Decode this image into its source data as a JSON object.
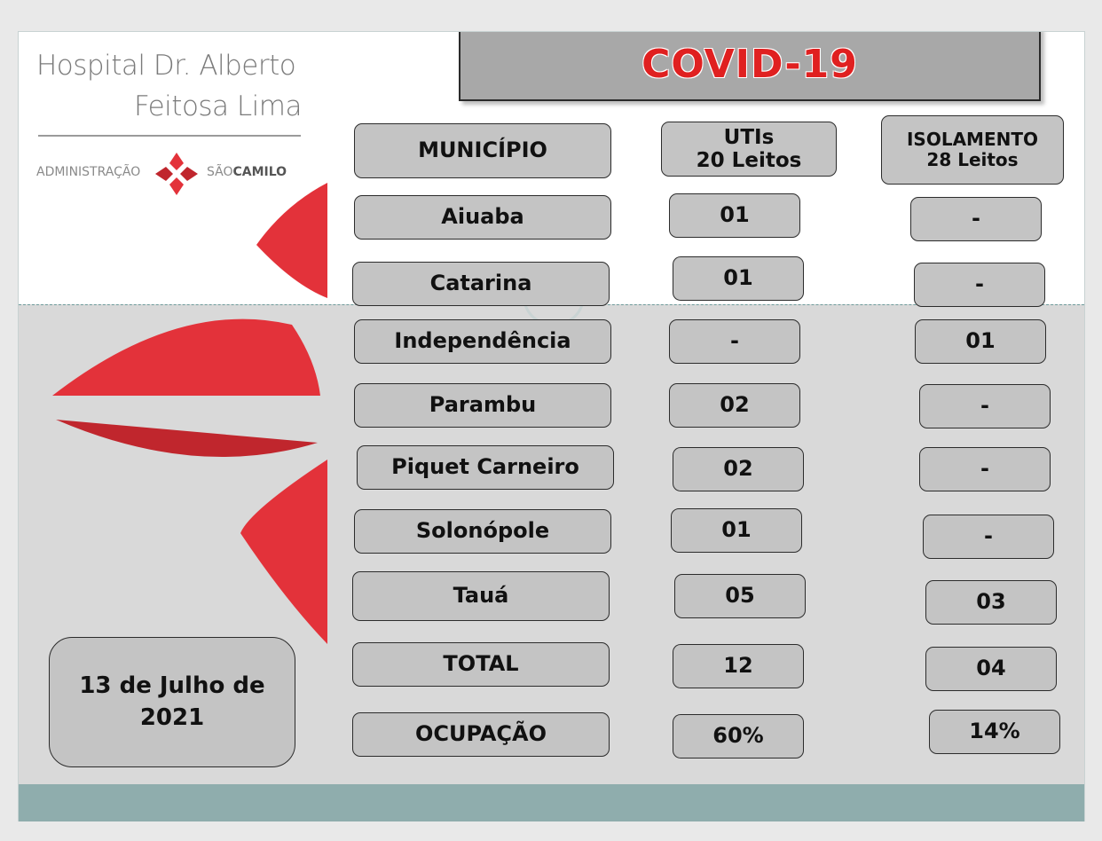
{
  "colors": {
    "accent_red": "#e3323a",
    "dark_red": "#c0262d",
    "title_red": "#e02020",
    "cell_gray": "#c4c4c4",
    "band_gray": "#d9d9d9",
    "footer_teal": "#8fadad"
  },
  "logo": {
    "line1": "Hospital Dr. Alberto",
    "line2": "Feitosa Lima",
    "admin_label": "ADMINISTRAÇÃO",
    "sao": "SÃO",
    "camilo": "CAMILO",
    "icon": "sao-camilo-cross-icon"
  },
  "title": "COVID-19",
  "headers": {
    "municipio": "MUNICÍPIO",
    "utis": "UTIs\n20 Leitos",
    "isolamento": "ISOLAMENTO\n28 Leitos"
  },
  "rows": [
    {
      "municipio": "Aiuaba",
      "utis": "01",
      "isolamento": "-"
    },
    {
      "municipio": "Catarina",
      "utis": "01",
      "isolamento": "-"
    },
    {
      "municipio": "Independência",
      "utis": "-",
      "isolamento": "01"
    },
    {
      "municipio": "Parambu",
      "utis": "02",
      "isolamento": "-"
    },
    {
      "municipio": "Piquet Carneiro",
      "utis": "02",
      "isolamento": "-"
    },
    {
      "municipio": "Solonópole",
      "utis": "01",
      "isolamento": "-"
    },
    {
      "municipio": "Tauá",
      "utis": "05",
      "isolamento": "03"
    },
    {
      "municipio": "TOTAL",
      "utis": "12",
      "isolamento": "04"
    },
    {
      "municipio": "OCUPAÇÃO",
      "utis": "60%",
      "isolamento": "14%"
    }
  ],
  "date": "13 de Julho de 2021"
}
